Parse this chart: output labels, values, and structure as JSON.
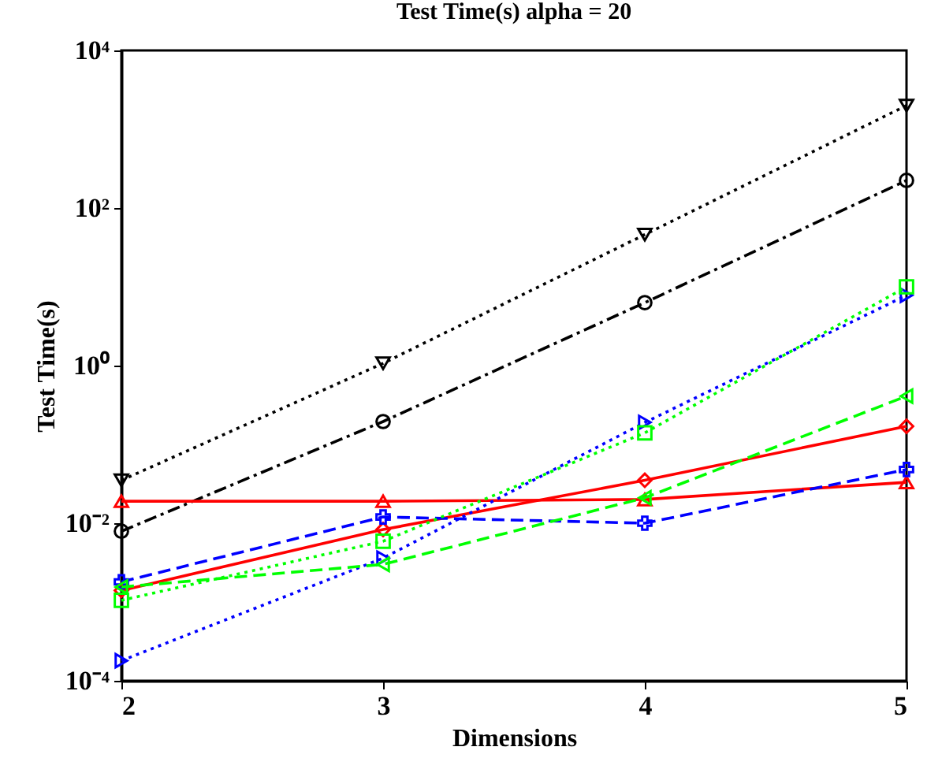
{
  "chart_data": {
    "type": "line",
    "title": "Test Time(s) alpha = 20",
    "xlabel": "Dimensions",
    "ylabel": "Test Time(s)",
    "x": [
      2,
      3,
      4,
      5
    ],
    "xlim": [
      2,
      5
    ],
    "xticks": [
      2,
      3,
      4,
      5
    ],
    "ylim": [
      0.0001,
      10000
    ],
    "yticks": [
      {
        "value": 0.0001,
        "label": "10⁻⁴"
      },
      {
        "value": 0.01,
        "label": "10⁻²"
      },
      {
        "value": 1,
        "label": "10⁰"
      },
      {
        "value": 100,
        "label": "10²"
      },
      {
        "value": 10000,
        "label": "10⁴"
      }
    ],
    "log": "y",
    "grid": false,
    "series": [
      {
        "color": "#000000",
        "marker": "triangle-down",
        "line_style": "dotted",
        "values": [
          0.035,
          1.07,
          46,
          2000
        ]
      },
      {
        "color": "#000000",
        "marker": "circle",
        "line_style": "dashdot",
        "values": [
          0.0079,
          0.195,
          6.3,
          224
        ]
      },
      {
        "color": "#ff0000",
        "marker": "triangle-up",
        "line_style": "solid",
        "values": [
          0.019,
          0.019,
          0.02,
          0.033
        ]
      },
      {
        "color": "#ff0000",
        "marker": "diamond",
        "line_style": "solid",
        "values": [
          0.0014,
          0.0083,
          0.035,
          0.17
        ]
      },
      {
        "color": "#0000ff",
        "marker": "cross",
        "line_style": "dashed",
        "values": [
          0.0018,
          0.012,
          0.01,
          0.048
        ]
      },
      {
        "color": "#0000ff",
        "marker": "triangle-right",
        "line_style": "dotted",
        "values": [
          0.00018,
          0.0036,
          0.19,
          7.8
        ]
      },
      {
        "color": "#00ff00",
        "marker": "square",
        "line_style": "dotted",
        "values": [
          0.00105,
          0.0059,
          0.14,
          10
        ]
      },
      {
        "color": "#00ff00",
        "marker": "triangle-left",
        "line_style": "dashed",
        "values": [
          0.00155,
          0.003,
          0.021,
          0.41
        ]
      }
    ]
  }
}
